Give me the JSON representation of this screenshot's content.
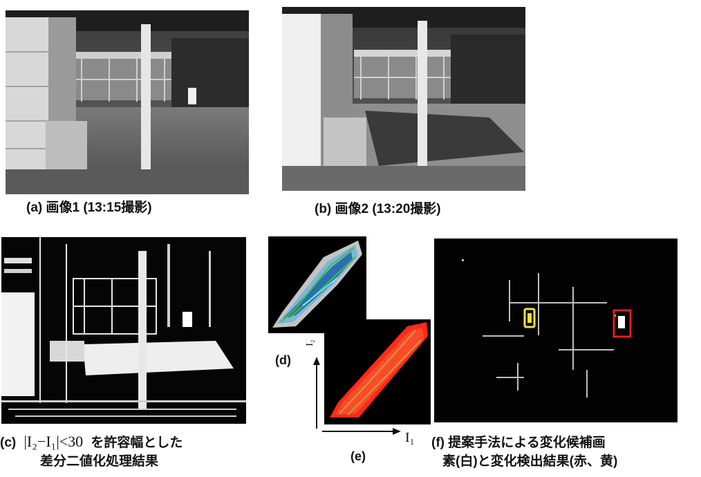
{
  "captions": {
    "a": "(a) 画像1 (13:15撮影)",
    "b": "(b) 画像2 (13:20撮影)",
    "c_prefix": "(c)",
    "c_formula": "|I₂−I₁|<30",
    "c_line1_suffix": "を許容幅とした",
    "c_line2": "差分二値化処理結果",
    "d": "(d)",
    "e": "(e)",
    "f_line1": "(f) 提案手法による変化候補画",
    "f_line2": "素(白)と変化検出結果(赤、黄)"
  },
  "axes": {
    "x_label": "I₁",
    "y_label": "I₂"
  },
  "colors": {
    "detect_red": "#e02020",
    "detect_yellow": "#f2e23a",
    "heat_red": "#ff2a1a",
    "contour_green": "#3fbf3f",
    "contour_cyan": "#7fe6ff"
  }
}
